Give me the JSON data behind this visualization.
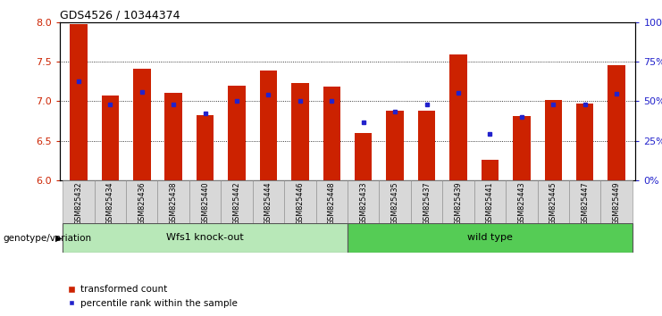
{
  "title": "GDS4526 / 10344374",
  "samples": [
    "GSM825432",
    "GSM825434",
    "GSM825436",
    "GSM825438",
    "GSM825440",
    "GSM825442",
    "GSM825444",
    "GSM825446",
    "GSM825448",
    "GSM825433",
    "GSM825435",
    "GSM825437",
    "GSM825439",
    "GSM825441",
    "GSM825443",
    "GSM825445",
    "GSM825447",
    "GSM825449"
  ],
  "red_values": [
    7.97,
    7.07,
    7.41,
    7.1,
    6.82,
    7.2,
    7.39,
    7.23,
    7.18,
    6.6,
    6.88,
    6.88,
    7.59,
    6.26,
    6.81,
    7.02,
    6.97,
    7.45
  ],
  "blue_values": [
    7.25,
    6.96,
    7.12,
    6.96,
    6.85,
    7.0,
    7.08,
    7.0,
    7.0,
    6.73,
    6.87,
    6.96,
    7.1,
    6.58,
    6.8,
    6.96,
    6.96,
    7.09
  ],
  "ymin": 6.0,
  "ymax": 8.0,
  "yticks_left": [
    6.0,
    6.5,
    7.0,
    7.5,
    8.0
  ],
  "yticks_right_vals": [
    6.0,
    6.5,
    7.0,
    7.5,
    8.0
  ],
  "yticks_right_labels": [
    "0%",
    "25%",
    "50%",
    "75%",
    "100%"
  ],
  "bar_color": "#cc2200",
  "dot_color": "#2222cc",
  "group1_label": "Wfs1 knock-out",
  "group2_label": "wild type",
  "group1_indices": [
    0,
    1,
    2,
    3,
    4,
    5,
    6,
    7,
    8
  ],
  "group2_indices": [
    9,
    10,
    11,
    12,
    13,
    14,
    15,
    16,
    17
  ],
  "group1_color": "#b8e8b8",
  "group2_color": "#55cc55",
  "xlabel_left": "genotype/variation",
  "legend_red": "transformed count",
  "legend_blue": "percentile rank within the sample",
  "bar_width": 0.55
}
